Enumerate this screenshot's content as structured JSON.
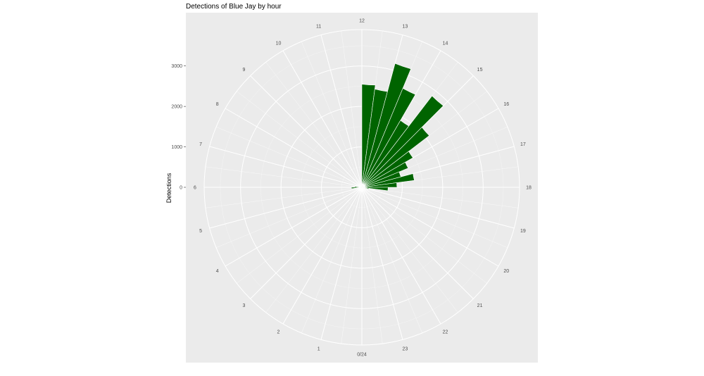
{
  "chart_data": {
    "type": "bar",
    "coord": "polar",
    "title": "Detections of Blue Jay by hour",
    "xlabel": "",
    "ylabel": "Detections",
    "categories": [
      0,
      1,
      2,
      3,
      4,
      5,
      6,
      7,
      8,
      9,
      10,
      11,
      12,
      13,
      14,
      15,
      16,
      17,
      18,
      19,
      20,
      21,
      22,
      23
    ],
    "hour_labels": [
      "0/24",
      "1",
      "2",
      "3",
      "4",
      "5",
      "6",
      "7",
      "8",
      "9",
      "10",
      "11",
      "12",
      "13",
      "14",
      "15",
      "16",
      "17",
      "18",
      "19",
      "20",
      "21",
      "22",
      "23"
    ],
    "values": [
      0,
      0,
      0,
      0,
      0,
      0,
      0,
      0,
      0,
      0,
      0,
      0,
      2550,
      3170,
      1910,
      2100,
      1240,
      1310,
      650,
      0,
      0,
      0,
      0,
      0
    ],
    "values_half_hour": [
      [
        0,
        0
      ],
      [
        0,
        0
      ],
      [
        0,
        0
      ],
      [
        0,
        0
      ],
      [
        0,
        0
      ],
      [
        0,
        0
      ],
      [
        0,
        0
      ],
      [
        0,
        0
      ],
      [
        0,
        0
      ],
      [
        0,
        0
      ],
      [
        0,
        0
      ],
      [
        0,
        0
      ],
      [
        2550,
        2450
      ],
      [
        3170,
        2650
      ],
      [
        1910,
        2850
      ],
      [
        2100,
        1460
      ],
      [
        1240,
        1000
      ],
      [
        1310,
        870
      ],
      [
        650,
        180
      ],
      [
        0,
        0
      ],
      [
        0,
        0
      ],
      [
        0,
        0
      ],
      [
        0,
        0
      ],
      [
        0,
        0
      ]
    ],
    "ylim": [
      0,
      3900
    ],
    "yticks": [
      0,
      1000,
      2000,
      3000
    ],
    "grid": true,
    "legend": "none",
    "colors": {
      "bar": "#006400",
      "panel": "#ebebeb",
      "grid": "#ffffff"
    }
  }
}
